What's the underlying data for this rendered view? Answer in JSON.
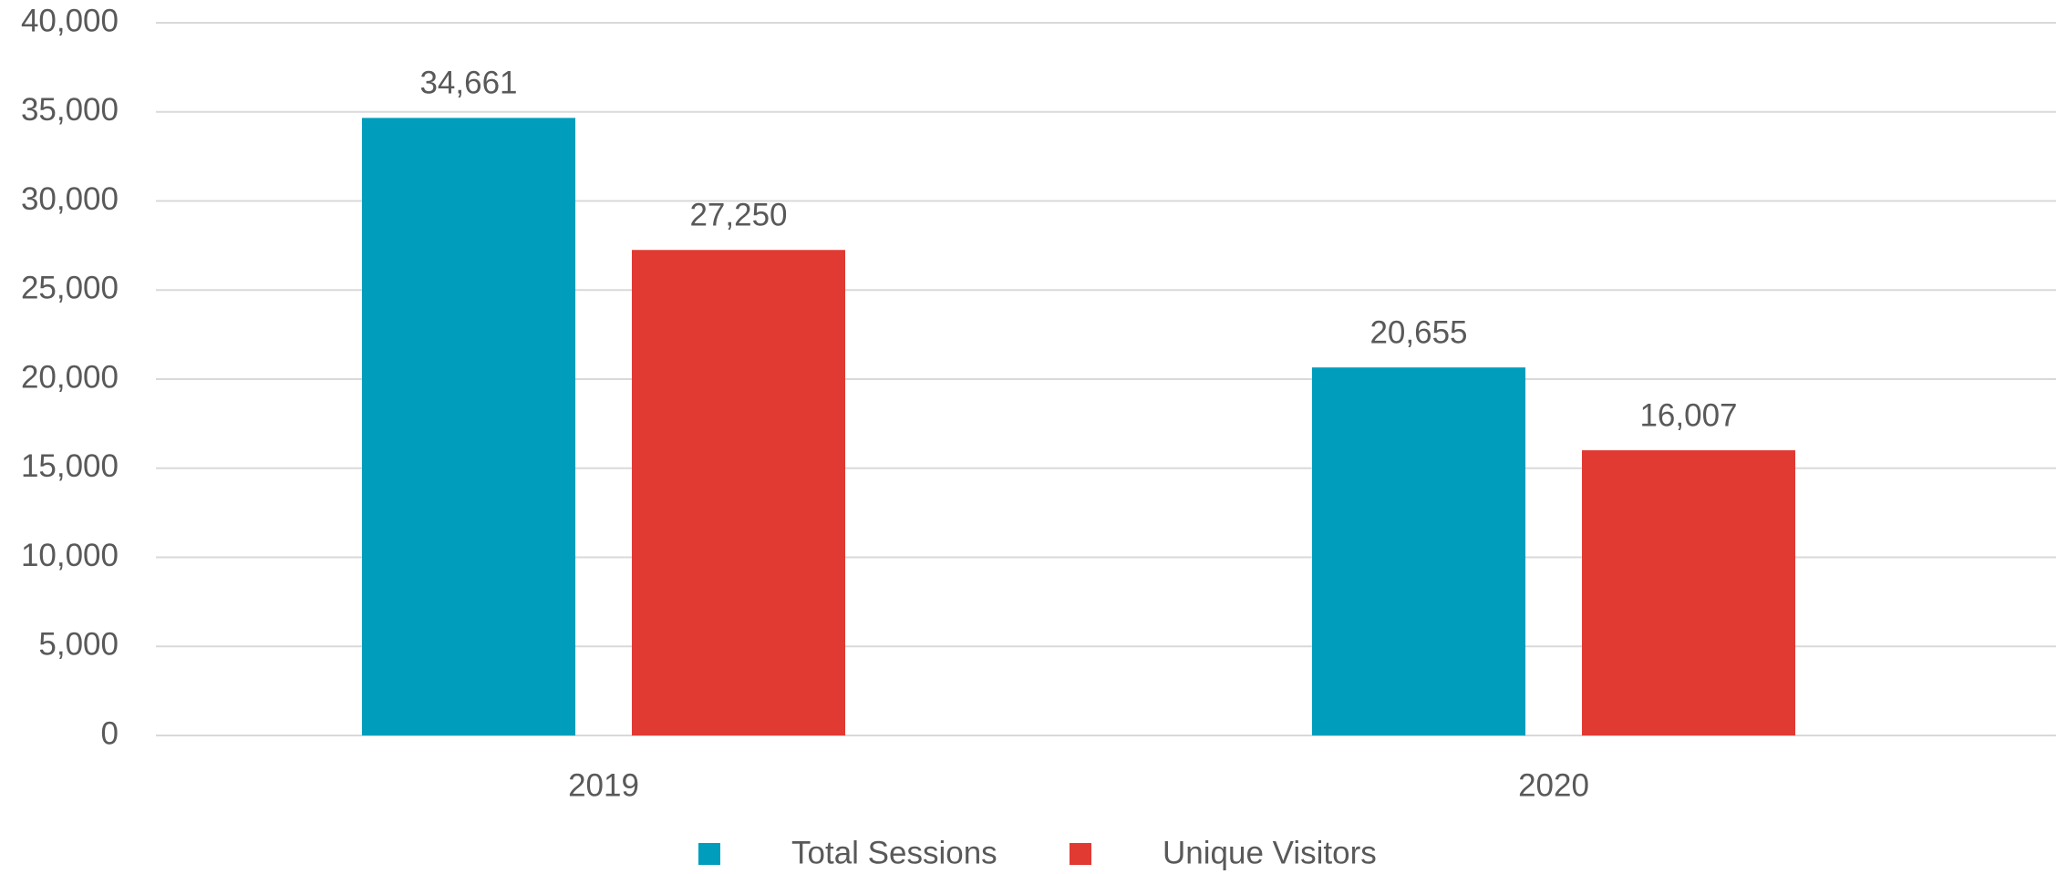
{
  "chart_data": {
    "type": "bar",
    "categories": [
      "2019",
      "2020"
    ],
    "series": [
      {
        "name": "Total Sessions",
        "color": "#009dbd",
        "values": [
          34661,
          20655
        ],
        "value_labels": [
          "34,661",
          "20,655"
        ]
      },
      {
        "name": "Unique Visitors",
        "color": "#e03a33",
        "values": [
          27250,
          16007
        ],
        "value_labels": [
          "27,250",
          "16,007"
        ]
      }
    ],
    "ylim": [
      0,
      40000
    ],
    "yticks": [
      0,
      {
        "value": 5000,
        "label": "5,000"
      },
      {
        "value": 10000,
        "label": "10,000"
      },
      {
        "value": 15000,
        "label": "15,000"
      },
      {
        "value": 20000,
        "label": "20,000"
      },
      {
        "value": 25000,
        "label": "25,000"
      },
      {
        "value": 30000,
        "label": "30,000"
      },
      {
        "value": 35000,
        "label": "35,000"
      },
      {
        "value": 40000,
        "label": "40,000"
      }
    ],
    "grid": true,
    "legend": "bottom"
  }
}
